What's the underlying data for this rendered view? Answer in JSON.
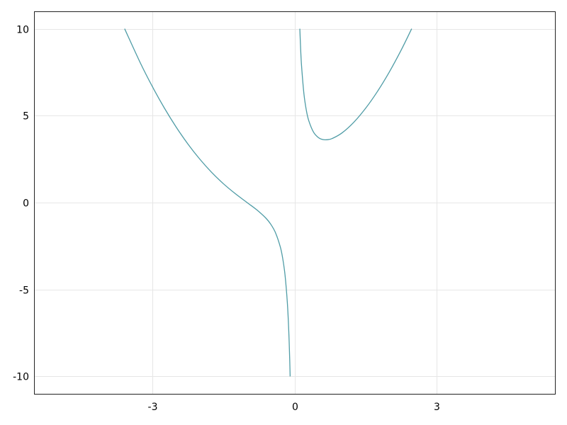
{
  "chart_data": {
    "type": "line",
    "title": "",
    "xlabel": "",
    "ylabel": "",
    "xlim": [
      -5.5,
      5.5
    ],
    "ylim": [
      -11,
      11
    ],
    "grid": true,
    "xticks": [
      -3,
      0,
      3
    ],
    "yticks": [
      -10,
      -5,
      0,
      5,
      10
    ],
    "xtick_labels": [
      "-3",
      "0",
      "3"
    ],
    "ytick_labels": [
      "-10",
      "-5",
      "0",
      "5",
      "10"
    ],
    "line_color": "#4f9ca6",
    "series": [
      {
        "x": [
          -3.587,
          -3.25,
          -3,
          -2.75,
          -2.5,
          -2.25,
          -2,
          -1.75,
          -1.5,
          -1.25,
          -1,
          -0.8,
          -0.6,
          -0.5,
          -0.4,
          -0.3,
          -0.25,
          -0.2,
          -0.15,
          -0.12,
          -0.1,
          -0.0916
        ],
        "y": [
          10,
          8.005,
          6.667,
          5.449,
          4.35,
          3.368,
          2.5,
          1.741,
          1.083,
          0.513,
          0,
          -0.41,
          -0.907,
          -1.25,
          -1.74,
          -2.543,
          -3.188,
          -4.16,
          -5.794,
          -7.439,
          -9.09,
          -10
        ]
      },
      {
        "x": [
          0.1128,
          0.13,
          0.15,
          0.2,
          0.25,
          0.3,
          0.4,
          0.5,
          0.6,
          0.7,
          0.8,
          1,
          1.25,
          1.5,
          1.75,
          2,
          2.25,
          2.4745
        ],
        "y": [
          10,
          8.839,
          7.839,
          6.24,
          5.313,
          4.723,
          4.06,
          3.75,
          3.627,
          3.619,
          3.69,
          4,
          4.613,
          5.417,
          6.384,
          7.5,
          8.757,
          10
        ]
      }
    ]
  }
}
